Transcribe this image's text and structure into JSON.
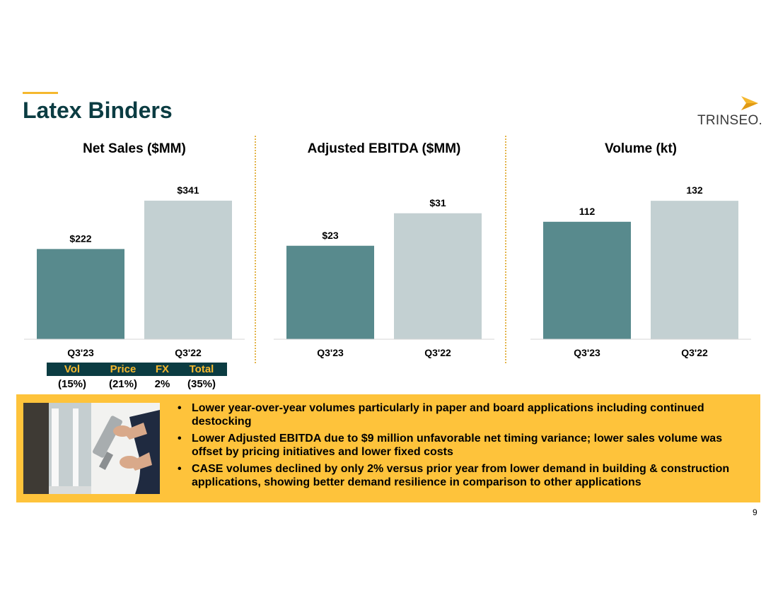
{
  "title": "Latex Binders",
  "logo": {
    "text": "TRINSEO."
  },
  "colors": {
    "primary_bar": "#588a8d",
    "secondary_bar": "#c3d0d2",
    "accent": "#f5b82e",
    "dark": "#0b3c42",
    "callout_bg": "#fec33b"
  },
  "chart_data": [
    {
      "type": "bar",
      "title": "Net Sales ($MM)",
      "categories": [
        "Q3'23",
        "Q3'22"
      ],
      "values": [
        222,
        341
      ],
      "labels": [
        "$222",
        "$341"
      ],
      "ylim": [
        0,
        400
      ],
      "grid": false
    },
    {
      "type": "bar",
      "title": "Adjusted EBITDA ($MM)",
      "categories": [
        "Q3'23",
        "Q3'22"
      ],
      "values": [
        23,
        31
      ],
      "labels": [
        "$23",
        "$31"
      ],
      "ylim": [
        0,
        40
      ],
      "grid": false
    },
    {
      "type": "bar",
      "title": "Volume (kt)",
      "categories": [
        "Q3'23",
        "Q3'22"
      ],
      "values": [
        112,
        132
      ],
      "labels": [
        "112",
        "132"
      ],
      "ylim": [
        0,
        155
      ],
      "grid": false
    }
  ],
  "bridge": {
    "headers": [
      "Vol",
      "Price",
      "FX",
      "Total"
    ],
    "values": [
      "(15%)",
      "(21%)",
      "2%",
      "(35%)"
    ]
  },
  "photo_icon": "caulking-gun-photo",
  "bullets": [
    "Lower year-over-year volumes particularly in paper and board applications including continued destocking",
    "Lower Adjusted EBITDA due to $9 million unfavorable net timing variance; lower sales volume was offset by pricing initiatives and lower fixed costs",
    "CASE volumes declined by only 2% versus prior year from lower demand in building & construction applications, showing better demand resilience in comparison to other applications"
  ],
  "page_number": "9"
}
